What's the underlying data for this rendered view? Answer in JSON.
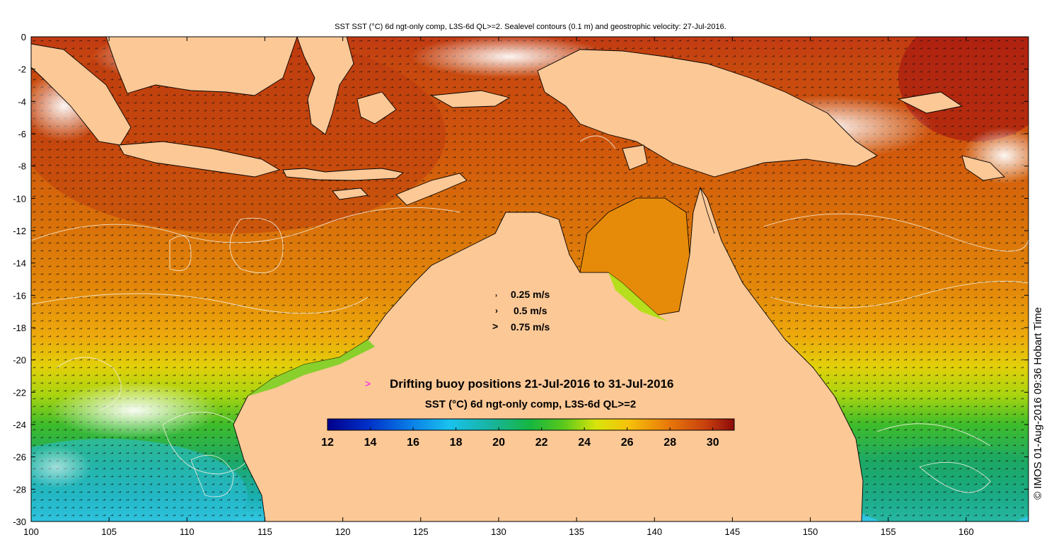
{
  "title": "SST SST (°C) 6d ngt-only comp, L3S-6d QL>=2. Sealevel contours (0.1 m) and geostrophic velocity: 27-Jul-2016.",
  "credit": "© IMOS 01-Aug-2016 09:36 Hobart Time",
  "map": {
    "lon_range": [
      100,
      164
    ],
    "lat_range": [
      -30,
      0
    ],
    "x_ticks": [
      "100",
      "105",
      "110",
      "115",
      "120",
      "125",
      "130",
      "135",
      "140",
      "145",
      "150",
      "155",
      "160"
    ],
    "y_ticks": [
      "0",
      "-2",
      "-4",
      "-6",
      "-8",
      "-10",
      "-12",
      "-14",
      "-16",
      "-18",
      "-20",
      "-22",
      "-24",
      "-26",
      "-28",
      "-30"
    ],
    "land_color": "#fcc896",
    "cloud_color": "#ffffff"
  },
  "velocity_legend": [
    {
      "label": "0.25 m/s",
      "speed": 0.25
    },
    {
      "label": "0.5 m/s",
      "speed": 0.5
    },
    {
      "label": "0.75 m/s",
      "speed": 0.75
    }
  ],
  "buoy_legend": {
    "symbol": ">",
    "symbol_color": "#ff00ff",
    "label": "Drifting buoy positions 21-Jul-2016 to 31-Jul-2016"
  },
  "colorbar": {
    "label": "SST (°C) 6d ngt-only comp, L3S-6d QL>=2",
    "range": [
      12,
      31
    ],
    "ticks": [
      "12",
      "14",
      "16",
      "18",
      "20",
      "22",
      "24",
      "26",
      "28",
      "30"
    ]
  }
}
